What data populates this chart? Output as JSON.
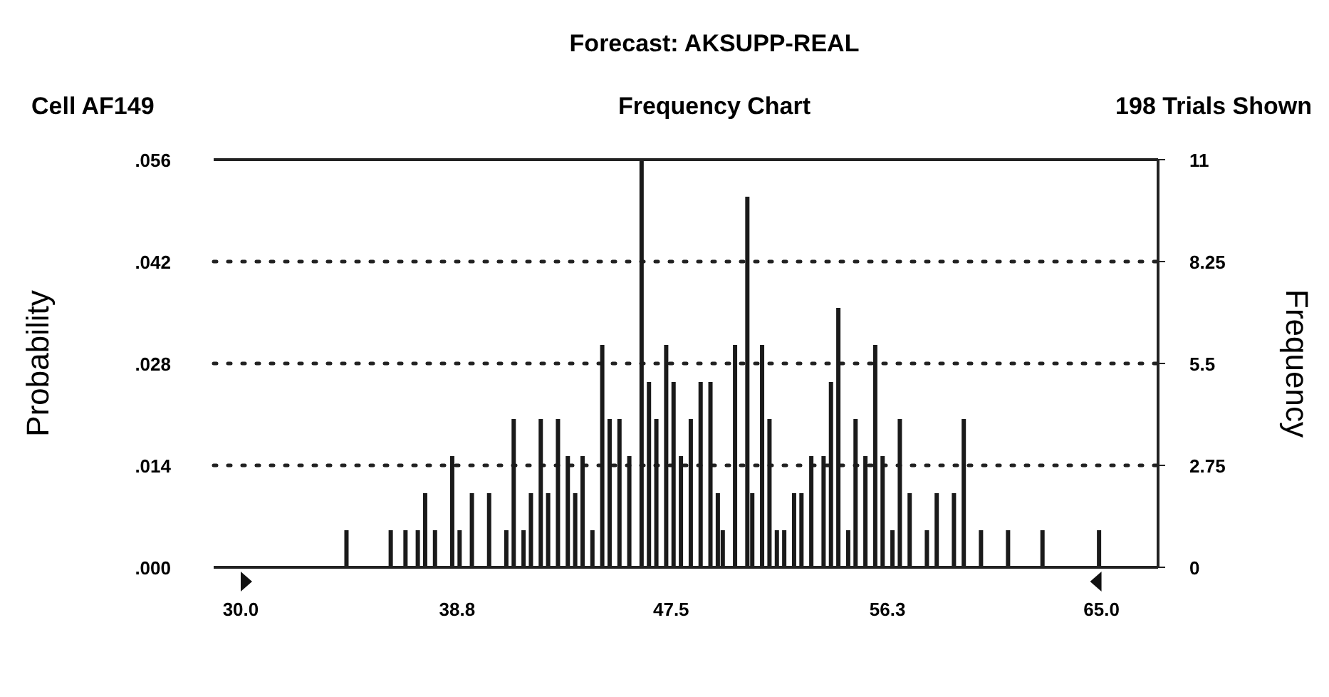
{
  "chart_data": {
    "type": "bar",
    "title": "Forecast: AKSUPP-REAL",
    "subtitle": "Frequency Chart",
    "annotations": [
      "Cell AF149",
      "198 Trials Shown"
    ],
    "ylabel": "Probability",
    "y2label": "Frequency",
    "xlim": [
      28.9,
      67.3
    ],
    "xticks": [
      {
        "value": 30,
        "label": "30.0"
      },
      {
        "value": 38.8,
        "label": "38.8"
      },
      {
        "value": 47.5,
        "label": "47.5"
      },
      {
        "value": 56.3,
        "label": "56.3"
      },
      {
        "value": 65,
        "label": "65.0"
      }
    ],
    "ylim": [
      0,
      0.056
    ],
    "yticks": [
      {
        "value": 0,
        "label": ".000"
      },
      {
        "value": 0.014,
        "label": ".014"
      },
      {
        "value": 0.028,
        "label": ".028"
      },
      {
        "value": 0.042,
        "label": ".042"
      },
      {
        "value": 0.056,
        "label": ".056"
      }
    ],
    "y2lim": [
      0,
      11
    ],
    "y2ticks": [
      0,
      2.75,
      5.5,
      8.25,
      11
    ],
    "grid": "y",
    "line_style": "dotted",
    "series": [
      {
        "color": "#1a1a1a",
        "axis": "y2",
        "x": [
          34.3,
          36.1,
          36.7,
          37.2,
          37.5,
          37.9,
          38.6,
          38.9,
          39.4,
          40.1,
          40.8,
          41.1,
          41.5,
          41.8,
          42.2,
          42.5,
          42.9,
          43.3,
          43.6,
          43.9,
          44.3,
          44.7,
          45.0,
          45.4,
          45.8,
          46.3,
          46.6,
          46.9,
          47.3,
          47.6,
          47.9,
          48.3,
          48.7,
          49.1,
          49.4,
          49.6,
          50.1,
          50.6,
          50.8,
          51.2,
          51.5,
          51.8,
          52.1,
          52.5,
          52.8,
          53.2,
          53.7,
          54.0,
          54.3,
          54.7,
          55.0,
          55.4,
          55.8,
          56.1,
          56.5,
          56.8,
          57.2,
          57.9,
          58.3,
          59.0,
          59.4,
          60.1,
          61.2,
          62.6,
          64.9
        ],
        "values": [
          1,
          1,
          1,
          1,
          2,
          1,
          3,
          1,
          2,
          2,
          1,
          4,
          1,
          2,
          4,
          2,
          4,
          3,
          2,
          3,
          1,
          6,
          4,
          4,
          3,
          11,
          5,
          4,
          6,
          5,
          3,
          4,
          5,
          5,
          2,
          1,
          6,
          10,
          2,
          6,
          4,
          1,
          1,
          2,
          2,
          3,
          3,
          5,
          7,
          1,
          4,
          3,
          6,
          3,
          1,
          4,
          2,
          1,
          2,
          2,
          4,
          1,
          1,
          1,
          1
        ]
      }
    ]
  }
}
